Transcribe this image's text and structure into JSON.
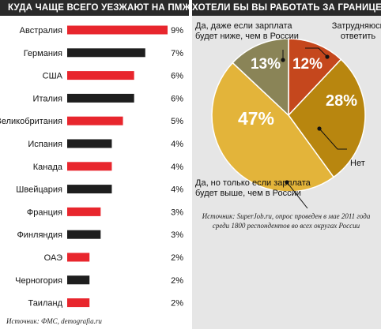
{
  "colors": {
    "header_bg": "#2a2a2a",
    "bar_red": "#e8262d",
    "bar_black": "#1e1e1e",
    "panel_bg": "#e6e6e6",
    "pie_no": "#b8860f",
    "pie_yes_higher": "#e3b43a",
    "pie_yes_lower": "#8a8457",
    "pie_hard": "#c5471d"
  },
  "left_header": "КУДА ЧАЩЕ ВСЕГО УЕЗЖАЮТ НА ПМЖ РОССИЯНЕ",
  "right_header": "ХОТЕЛИ БЫ ВЫ РАБОТАТЬ ЗА ГРАНИЦЕЙ?",
  "left_source": "Источник: ФМС, demografia.ru",
  "right_source": [
    "Источник: SuperJob.ru, опрос проведен в мае 2011 года",
    "среди 1800 респондентов во всех округах России"
  ],
  "chart_data": [
    {
      "type": "bar",
      "orientation": "horizontal",
      "title": "КУДА ЧАЩЕ ВСЕГО УЕЗЖАЮТ НА ПМЖ РОССИЯНЕ",
      "categories": [
        "Австралия",
        "Германия",
        "США",
        "Италия",
        "Великобритания",
        "Испания",
        "Канада",
        "Швейцария",
        "Франция",
        "Финляндия",
        "ОАЭ",
        "Черногория",
        "Таиланд"
      ],
      "values": [
        9,
        7,
        6,
        6,
        5,
        4,
        4,
        4,
        3,
        3,
        2,
        2,
        2
      ],
      "value_labels": [
        "9%",
        "7%",
        "6%",
        "6%",
        "5%",
        "4%",
        "4%",
        "4%",
        "3%",
        "3%",
        "2%",
        "2%",
        "2%"
      ],
      "bar_colors": [
        "red",
        "black",
        "red",
        "black",
        "red",
        "black",
        "red",
        "black",
        "red",
        "black",
        "red",
        "black",
        "red"
      ],
      "xlim": [
        0,
        9
      ],
      "grid": false
    },
    {
      "type": "pie",
      "title": "ХОТЕЛИ БЫ ВЫ РАБОТАТЬ ЗА ГРАНИЦЕЙ?",
      "slices": [
        {
          "label": "Затрудняюсь ответить",
          "value": 12,
          "pct_label": "12%",
          "color": "#c5471d"
        },
        {
          "label": "Нет",
          "value": 28,
          "pct_label": "28%",
          "color": "#b8860f"
        },
        {
          "label": "Да, но только если зарплата будет выше, чем в России",
          "value": 47,
          "pct_label": "47%",
          "color": "#e3b43a"
        },
        {
          "label": "Да, даже если зарплата будет ниже, чем в России",
          "value": 13,
          "pct_label": "13%",
          "color": "#8a8457"
        }
      ]
    }
  ]
}
